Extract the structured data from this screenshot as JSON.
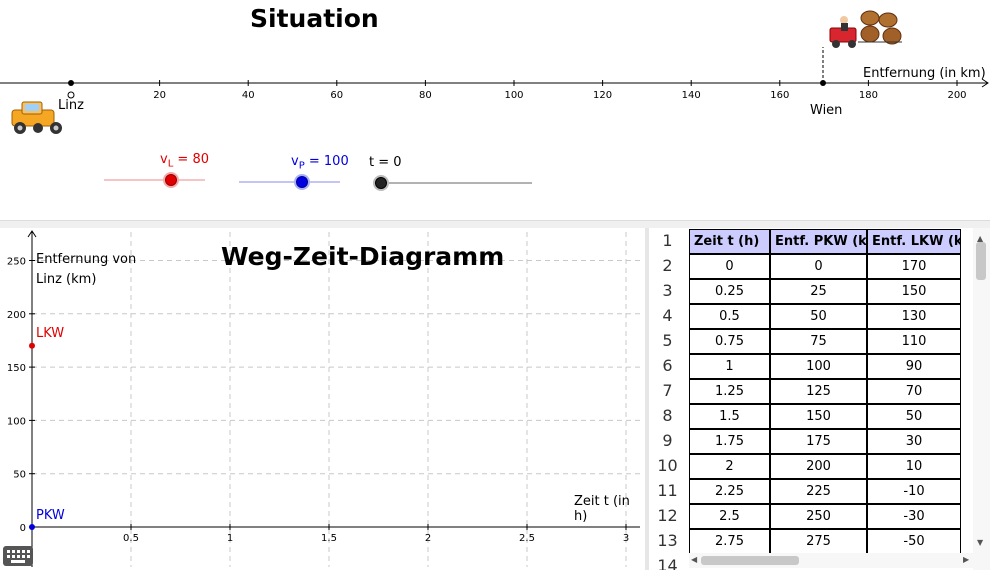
{
  "situation": {
    "title": "Situation",
    "axis_label": "Entfernung (in km)",
    "ticks": [
      "20",
      "40",
      "60",
      "80",
      "100",
      "120",
      "140",
      "160",
      "180",
      "200"
    ],
    "linz_label": "Linz",
    "wien_label": "Wien"
  },
  "sliders": {
    "vl_prefix": "v",
    "vl_sub": "L",
    "vl_value": "= 80",
    "vp_prefix": "v",
    "vp_sub": "P",
    "vp_value": "= 100",
    "t_label": "t = 0",
    "colors": {
      "vl": "#e00000",
      "vp": "#0000e0",
      "t": "#000000"
    }
  },
  "diagram": {
    "title": "Weg-Zeit-Diagramm",
    "ylabel_line1": "Entfernung von",
    "ylabel_line2": "Linz (km)",
    "xlabel": "Zeit t (in h)",
    "y_ticks": [
      "250",
      "200",
      "150",
      "100",
      "50",
      "0"
    ],
    "x_ticks": [
      "0.5",
      "1",
      "1.5",
      "2",
      "2.5",
      "3"
    ],
    "lkw_label": "LKW",
    "pkw_label": "PKW",
    "chart_data": {
      "type": "scatter",
      "series": [
        {
          "name": "LKW",
          "x": [
            0
          ],
          "y": [
            170
          ]
        },
        {
          "name": "PKW",
          "x": [
            0
          ],
          "y": [
            0
          ]
        }
      ],
      "xlim": [
        0,
        3.1
      ],
      "ylim": [
        0,
        265
      ],
      "grid": true
    }
  },
  "sheet": {
    "row_numbers": [
      "1",
      "2",
      "3",
      "4",
      "5",
      "6",
      "7",
      "8",
      "9",
      "10",
      "11",
      "12",
      "13",
      "14"
    ],
    "headers": [
      "Zeit t (h)",
      "Entf. PKW (k",
      "Entf. LKW (k"
    ],
    "rows": [
      [
        "0",
        "0",
        "170"
      ],
      [
        "0.25",
        "25",
        "150"
      ],
      [
        "0.5",
        "50",
        "130"
      ],
      [
        "0.75",
        "75",
        "110"
      ],
      [
        "1",
        "100",
        "90"
      ],
      [
        "1.25",
        "125",
        "70"
      ],
      [
        "1.5",
        "150",
        "50"
      ],
      [
        "1.75",
        "175",
        "30"
      ],
      [
        "2",
        "200",
        "10"
      ],
      [
        "2.25",
        "225",
        "-10"
      ],
      [
        "2.5",
        "250",
        "-30"
      ],
      [
        "2.75",
        "275",
        "-50"
      ]
    ]
  }
}
